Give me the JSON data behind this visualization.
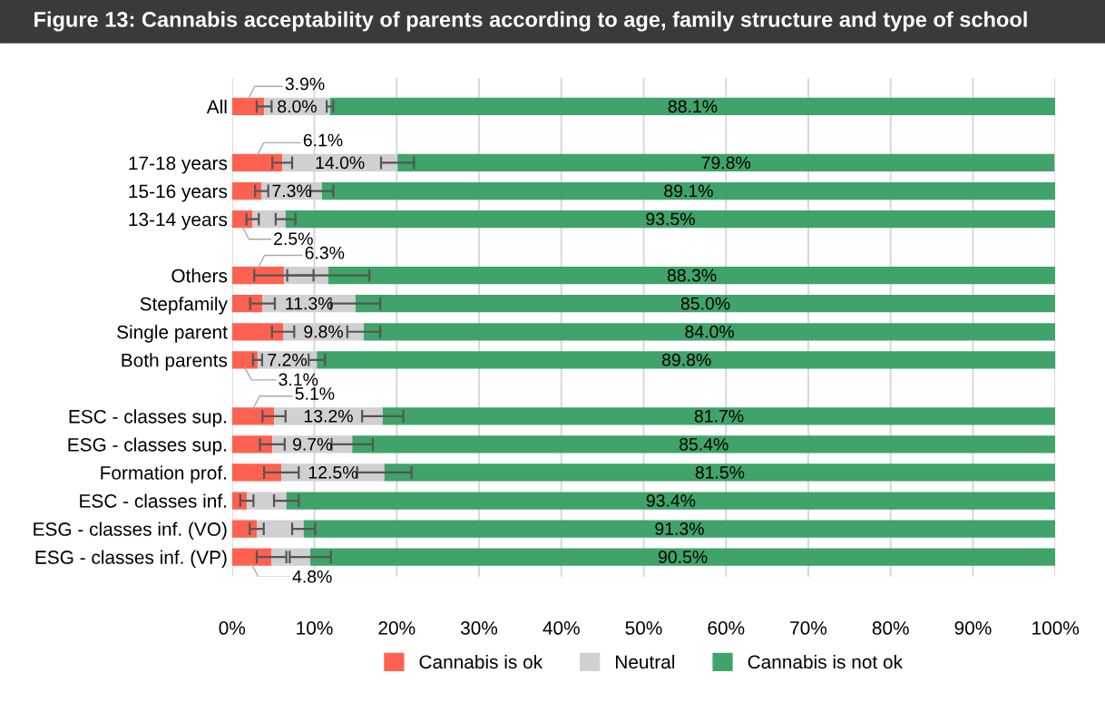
{
  "chart_data": {
    "type": "bar",
    "orientation": "horizontal",
    "stacked": true,
    "title": "Figure 13: Cannabis acceptability of parents according to age, family structure and type of school",
    "categories": [
      "All",
      null,
      "17-18 years",
      "15-16 years",
      "13-14 years",
      null,
      "Others",
      "Stepfamily",
      "Single parent",
      "Both parents",
      null,
      "ESC - classes sup.",
      "ESG - classes sup.",
      "Formation prof.",
      "ESC - classes inf.",
      "ESG - classes inf. (VO)",
      "ESG - classes inf. (VP)"
    ],
    "series": [
      {
        "name": "Cannabis is ok",
        "color": "#ff6150",
        "values": [
          3.9,
          null,
          6.1,
          3.6,
          2.5,
          null,
          6.3,
          3.7,
          6.2,
          3.1,
          null,
          5.1,
          4.9,
          6.0,
          1.8,
          3.0,
          4.8
        ],
        "errors": [
          0.9,
          null,
          1.2,
          0.8,
          0.75,
          null,
          3.6,
          1.5,
          1.35,
          0.55,
          null,
          1.4,
          1.5,
          2.1,
          0.8,
          0.85,
          1.8
        ],
        "value_labels": [
          "3.9%",
          null,
          "6.1%",
          null,
          "2.5%",
          null,
          "6.3%",
          null,
          null,
          "3.1%",
          null,
          "5.1%",
          null,
          null,
          null,
          null,
          "4.8%"
        ]
      },
      {
        "name": "Neutral",
        "color": "#d0d0d2",
        "values": [
          8.0,
          null,
          14.0,
          7.3,
          4.0,
          null,
          5.4,
          11.3,
          9.8,
          7.2,
          null,
          13.2,
          9.7,
          12.5,
          4.8,
          5.7,
          4.7
        ],
        "errors": [
          0.4,
          null,
          2.0,
          1.4,
          1.2,
          null,
          5.0,
          3.0,
          2.0,
          1.0,
          null,
          2.5,
          2.5,
          3.3,
          1.5,
          1.4,
          2.5
        ],
        "value_labels": [
          "8.0%",
          null,
          "14.0%",
          "7.3%",
          null,
          null,
          null,
          "11.3%",
          "9.8%",
          "7.2%",
          null,
          "13.2%",
          "9.7%",
          "12.5%",
          null,
          null,
          null
        ]
      },
      {
        "name": "Cannabis is not ok",
        "color": "#3fa36a",
        "values": [
          88.1,
          null,
          79.8,
          89.1,
          93.5,
          null,
          88.3,
          85.0,
          84.0,
          89.8,
          null,
          81.7,
          85.4,
          81.5,
          93.4,
          91.3,
          90.5
        ],
        "value_labels": [
          "88.1%",
          null,
          "79.8%",
          "89.1%",
          "93.5%",
          null,
          "88.3%",
          "85.0%",
          "84.0%",
          "89.8%",
          null,
          "81.7%",
          "85.4%",
          "81.5%",
          "93.4%",
          "91.3%",
          "90.5%"
        ]
      }
    ],
    "xlim": [
      0,
      100
    ],
    "xticks": [
      {
        "value": 0,
        "label": "0%"
      },
      {
        "value": 10,
        "label": "10%"
      },
      {
        "value": 20,
        "label": "20%"
      },
      {
        "value": 30,
        "label": "30%"
      },
      {
        "value": 40,
        "label": "40%"
      },
      {
        "value": 50,
        "label": "50%"
      },
      {
        "value": 60,
        "label": "60%"
      },
      {
        "value": 70,
        "label": "70%"
      },
      {
        "value": 80,
        "label": "80%"
      },
      {
        "value": 90,
        "label": "90%"
      },
      {
        "value": 100,
        "label": "100%"
      }
    ],
    "grid": "x",
    "legend": "bottom"
  }
}
